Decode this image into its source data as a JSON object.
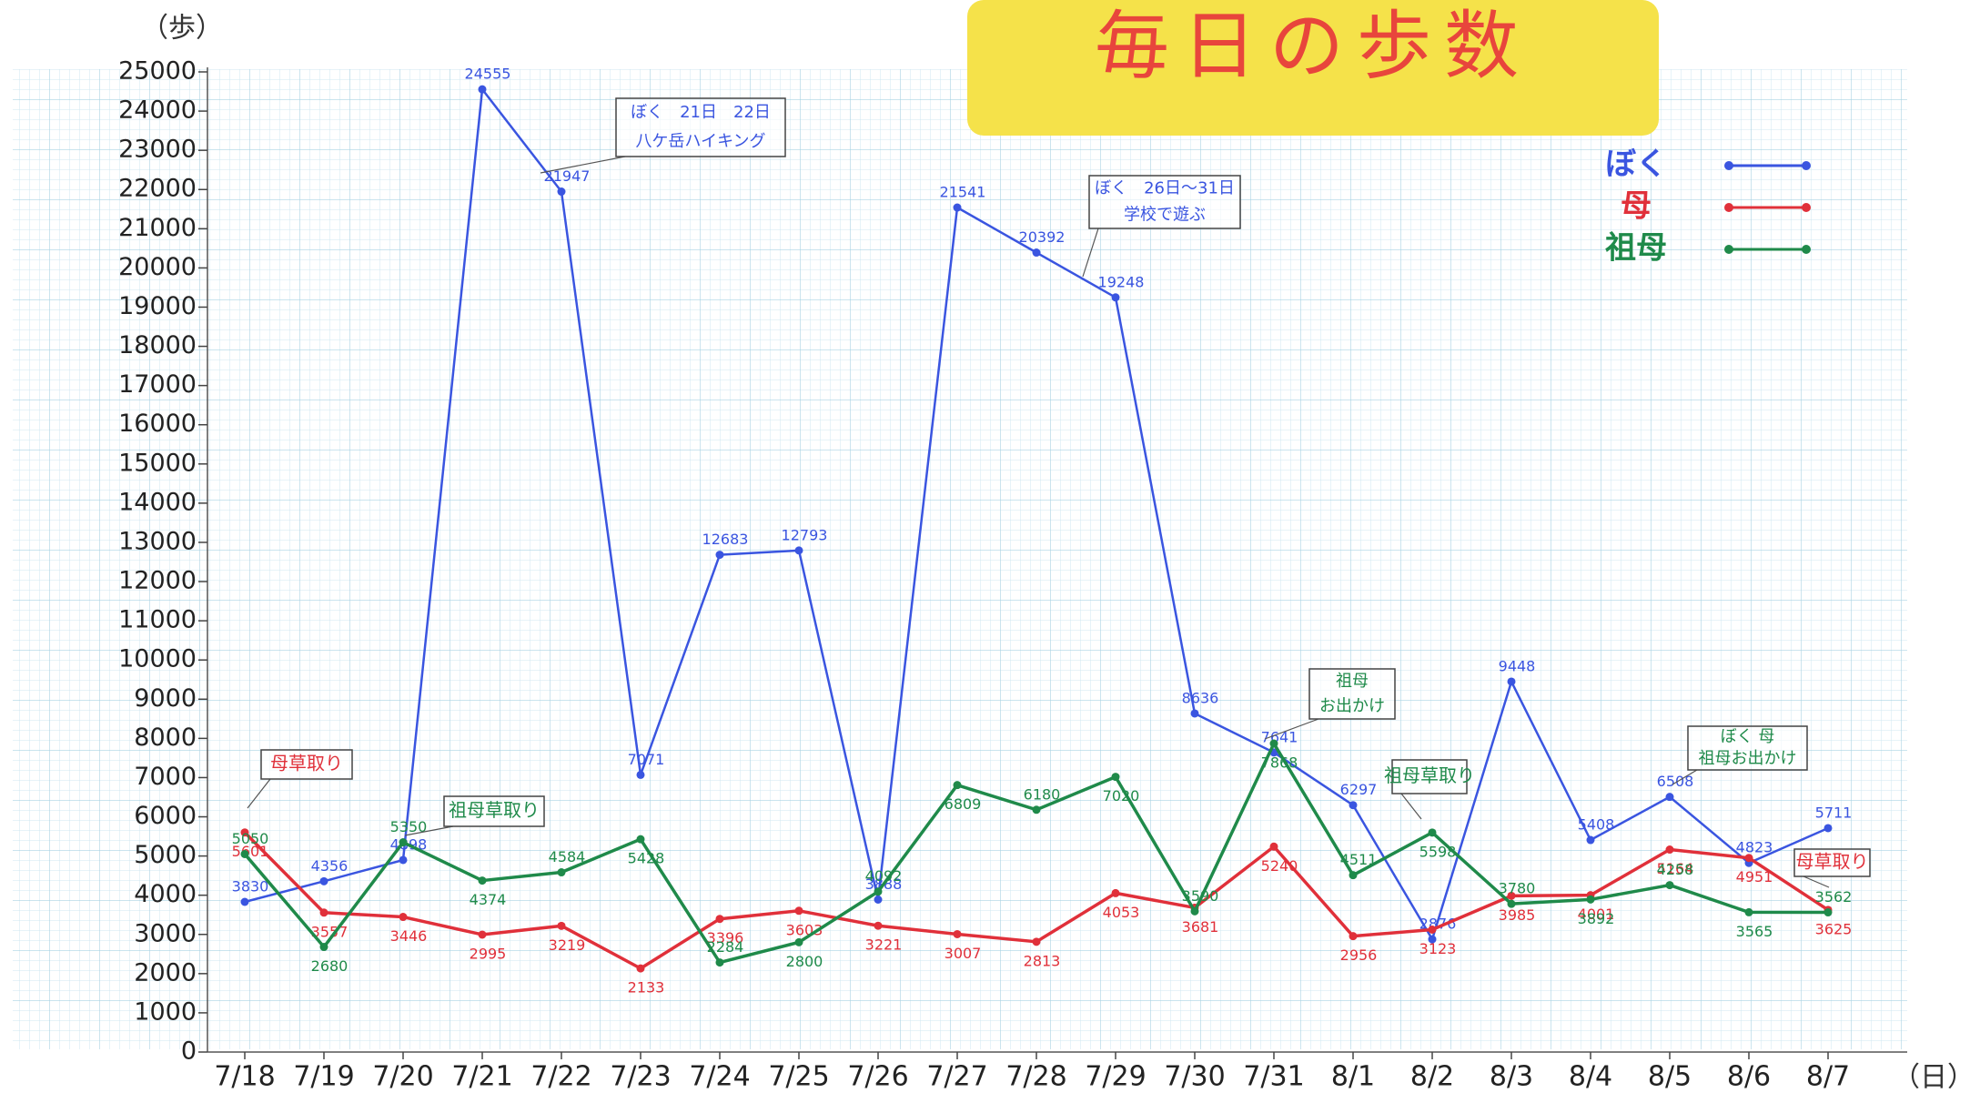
{
  "chart_data": {
    "type": "line",
    "title": "毎日の歩数",
    "y_unit": "（歩）",
    "x_unit": "（日）",
    "categories": [
      "7/18",
      "7/19",
      "7/20",
      "7/21",
      "7/22",
      "7/23",
      "7/24",
      "7/25",
      "7/26",
      "7/27",
      "7/28",
      "7/29",
      "7/30",
      "7/31",
      "8/1",
      "8/2",
      "8/3",
      "8/4",
      "8/5",
      "8/6",
      "8/7"
    ],
    "series": [
      {
        "name": "ぼく",
        "color": "#3a55e0",
        "values": [
          3830,
          4356,
          4898,
          24555,
          21947,
          7071,
          12683,
          12793,
          3888,
          21541,
          20392,
          19248,
          8636,
          7641,
          6297,
          2876,
          9448,
          5408,
          6508,
          4823,
          5711
        ]
      },
      {
        "name": "母",
        "color": "#e0303a",
        "values": [
          5601,
          3557,
          3446,
          2995,
          3219,
          2133,
          3396,
          3603,
          3221,
          3007,
          2813,
          4053,
          3681,
          5240,
          2956,
          3123,
          3985,
          4001,
          5164,
          4951,
          3625
        ]
      },
      {
        "name": "祖母",
        "color": "#1f8a4a",
        "values": [
          5050,
          2680,
          5350,
          4374,
          4584,
          5428,
          2284,
          2800,
          4092,
          6809,
          6180,
          7020,
          3590,
          7868,
          4511,
          5598,
          3780,
          3892,
          4258,
          3565,
          3562
        ]
      }
    ],
    "ylim": [
      0,
      25000
    ],
    "yticks": [
      0,
      1000,
      2000,
      3000,
      4000,
      5000,
      6000,
      7000,
      8000,
      9000,
      10000,
      11000,
      12000,
      13000,
      14000,
      15000,
      16000,
      17000,
      18000,
      19000,
      20000,
      21000,
      22000,
      23000,
      24000,
      25000
    ],
    "annotations": [
      [
        "母草取り"
      ],
      [
        "祖母草取り"
      ],
      [
        "ぼく　21日　22日",
        "八ケ岳ハイキング"
      ],
      [
        "ぼく　26日～31日",
        "学校で遊ぶ"
      ],
      [
        "祖母",
        "お出かけ"
      ],
      [
        "祖母草取り"
      ],
      [
        "ぼく 母",
        "祖母お出かけ"
      ],
      [
        "母草取り"
      ]
    ]
  }
}
